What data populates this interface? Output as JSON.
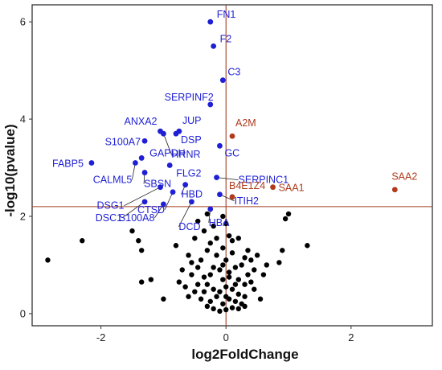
{
  "chart_data": {
    "type": "scatter",
    "title": "",
    "xlabel": "log2FoldChange",
    "ylabel": "-log10(pvalue)",
    "xlim": [
      -3.1,
      3.3
    ],
    "ylim": [
      -0.25,
      6.35
    ],
    "x_ticks": [
      -2,
      0,
      2
    ],
    "y_ticks": [
      0,
      2,
      4,
      6
    ],
    "grid": false,
    "legend": "none",
    "thresholds": {
      "vertical_x": 0,
      "horizontal_y": 2.2
    },
    "colors": {
      "down": "#1f1fd6",
      "up": "#b03a1c",
      "nonsignificant": "#000000",
      "threshold_line": "#a13d22"
    },
    "down_regulated": [
      {
        "label": "FN1",
        "x": -0.25,
        "y": 6.0
      },
      {
        "label": "F2",
        "x": -0.2,
        "y": 5.5
      },
      {
        "label": "C3",
        "x": -0.05,
        "y": 4.8
      },
      {
        "label": "SERPINF2",
        "x": -0.25,
        "y": 4.3
      },
      {
        "label": "ANXA2",
        "x": -1.05,
        "y": 3.75
      },
      {
        "label": "JUP",
        "x": -0.75,
        "y": 3.75
      },
      {
        "label": "DSP",
        "x": -0.8,
        "y": 3.7
      },
      {
        "label": "S100A7",
        "x": -1.3,
        "y": 3.55
      },
      {
        "label": "HRNR",
        "x": -1.0,
        "y": 3.7
      },
      {
        "label": "GC",
        "x": -0.1,
        "y": 3.45
      },
      {
        "label": "GAPDH",
        "x": -1.35,
        "y": 3.2
      },
      {
        "label": "FABP5",
        "x": -2.15,
        "y": 3.1
      },
      {
        "label": "CALML5",
        "x": -1.45,
        "y": 3.1
      },
      {
        "label": "SBSN",
        "x": -1.3,
        "y": 2.9
      },
      {
        "label": "FLG2",
        "x": -0.9,
        "y": 3.05
      },
      {
        "label": "SERPINC1",
        "x": -0.15,
        "y": 2.8
      },
      {
        "label": "DSG1",
        "x": -1.05,
        "y": 2.6
      },
      {
        "label": "HBD",
        "x": -0.65,
        "y": 2.65
      },
      {
        "label": "CTSD",
        "x": -0.85,
        "y": 2.5
      },
      {
        "label": "ITIH2",
        "x": -0.1,
        "y": 2.45
      },
      {
        "label": "DSC1",
        "x": -1.3,
        "y": 2.3
      },
      {
        "label": "S100A8",
        "x": -1.0,
        "y": 2.25
      },
      {
        "label": "HBA",
        "x": -0.25,
        "y": 2.15
      },
      {
        "label": "DCD",
        "x": -0.55,
        "y": 2.3
      }
    ],
    "up_regulated": [
      {
        "label": "A2M",
        "x": 0.1,
        "y": 3.65
      },
      {
        "label": "B4E1Z4",
        "x": 0.1,
        "y": 2.4
      },
      {
        "label": "SAA1",
        "x": 0.75,
        "y": 2.6
      },
      {
        "label": "SAA2",
        "x": 2.7,
        "y": 2.55
      }
    ],
    "nonsignificant_points": [
      {
        "x": -2.85,
        "y": 1.1
      },
      {
        "x": -2.3,
        "y": 1.5
      },
      {
        "x": -1.5,
        "y": 1.7
      },
      {
        "x": -1.4,
        "y": 1.5
      },
      {
        "x": -1.35,
        "y": 1.3
      },
      {
        "x": -1.2,
        "y": 0.7
      },
      {
        "x": -1.0,
        "y": 0.3
      },
      {
        "x": -1.35,
        "y": 0.65
      },
      {
        "x": -0.8,
        "y": 1.4
      },
      {
        "x": -0.7,
        "y": 0.9
      },
      {
        "x": 0.95,
        "y": 1.95
      },
      {
        "x": 1.0,
        "y": 2.05
      },
      {
        "x": 1.3,
        "y": 1.4
      },
      {
        "x": 0.9,
        "y": 1.3
      },
      {
        "x": 0.85,
        "y": 1.05
      },
      {
        "x": 0.6,
        "y": 0.8
      },
      {
        "x": 0.55,
        "y": 0.3
      },
      {
        "x": 0.4,
        "y": 1.1
      },
      {
        "x": -0.45,
        "y": 1.9
      },
      {
        "x": -0.35,
        "y": 1.7
      },
      {
        "x": -0.5,
        "y": 1.55
      },
      {
        "x": -0.25,
        "y": 1.45
      },
      {
        "x": -0.3,
        "y": 1.3
      },
      {
        "x": -0.15,
        "y": 1.2
      },
      {
        "x": -0.4,
        "y": 1.1
      },
      {
        "x": -0.6,
        "y": 1.2
      },
      {
        "x": -0.45,
        "y": 0.95
      },
      {
        "x": -0.2,
        "y": 0.95
      },
      {
        "x": -0.55,
        "y": 0.8
      },
      {
        "x": -0.35,
        "y": 0.75
      },
      {
        "x": -0.65,
        "y": 0.55
      },
      {
        "x": -0.5,
        "y": 0.45
      },
      {
        "x": -0.3,
        "y": 0.6
      },
      {
        "x": -0.2,
        "y": 0.5
      },
      {
        "x": -0.4,
        "y": 0.3
      },
      {
        "x": -0.25,
        "y": 0.25
      },
      {
        "x": -0.1,
        "y": 0.9
      },
      {
        "x": -0.05,
        "y": 0.7
      },
      {
        "x": 0.0,
        "y": 1.1
      },
      {
        "x": 0.05,
        "y": 0.85
      },
      {
        "x": 0.1,
        "y": 1.25
      },
      {
        "x": 0.15,
        "y": 0.95
      },
      {
        "x": 0.2,
        "y": 0.7
      },
      {
        "x": 0.25,
        "y": 1.0
      },
      {
        "x": 0.3,
        "y": 0.6
      },
      {
        "x": 0.35,
        "y": 0.8
      },
      {
        "x": 0.45,
        "y": 0.5
      },
      {
        "x": 0.2,
        "y": 0.4
      },
      {
        "x": 0.1,
        "y": 0.5
      },
      {
        "x": 0.0,
        "y": 0.55
      },
      {
        "x": -0.1,
        "y": 0.45
      },
      {
        "x": -0.15,
        "y": 0.35
      },
      {
        "x": 0.05,
        "y": 0.3
      },
      {
        "x": 0.15,
        "y": 0.25
      },
      {
        "x": -0.05,
        "y": 0.2
      },
      {
        "x": 0.25,
        "y": 0.2
      },
      {
        "x": 0.3,
        "y": 0.35
      },
      {
        "x": -0.3,
        "y": 0.15
      },
      {
        "x": 0.1,
        "y": 0.12
      },
      {
        "x": -0.2,
        "y": 0.1
      },
      {
        "x": 0.0,
        "y": 0.08
      },
      {
        "x": 0.2,
        "y": 0.1
      },
      {
        "x": -0.1,
        "y": 0.05
      },
      {
        "x": 0.1,
        "y": 1.5
      },
      {
        "x": -0.05,
        "y": 1.35
      },
      {
        "x": 0.05,
        "y": 1.6
      },
      {
        "x": -0.2,
        "y": 1.8
      },
      {
        "x": 0.2,
        "y": 1.55
      },
      {
        "x": 0.35,
        "y": 1.3
      },
      {
        "x": 0.5,
        "y": 1.2
      },
      {
        "x": -0.55,
        "y": 1.05
      },
      {
        "x": -0.75,
        "y": 0.65
      },
      {
        "x": 0.45,
        "y": 0.9
      },
      {
        "x": 0.65,
        "y": 1.0
      },
      {
        "x": -0.05,
        "y": 1.0
      },
      {
        "x": 0.0,
        "y": 0.35
      },
      {
        "x": 0.3,
        "y": 0.15
      },
      {
        "x": -0.35,
        "y": 0.45
      },
      {
        "x": -0.6,
        "y": 0.35
      },
      {
        "x": 0.15,
        "y": 0.6
      },
      {
        "x": -0.25,
        "y": 0.8
      },
      {
        "x": 0.4,
        "y": 0.65
      },
      {
        "x": -0.45,
        "y": 0.6
      },
      {
        "x": 0.05,
        "y": 0.75
      },
      {
        "x": 0.3,
        "y": 1.15
      },
      {
        "x": -0.15,
        "y": 1.55
      },
      {
        "x": 0.0,
        "y": 1.85
      },
      {
        "x": -0.05,
        "y": 2.0
      },
      {
        "x": -0.3,
        "y": 2.05
      }
    ]
  }
}
